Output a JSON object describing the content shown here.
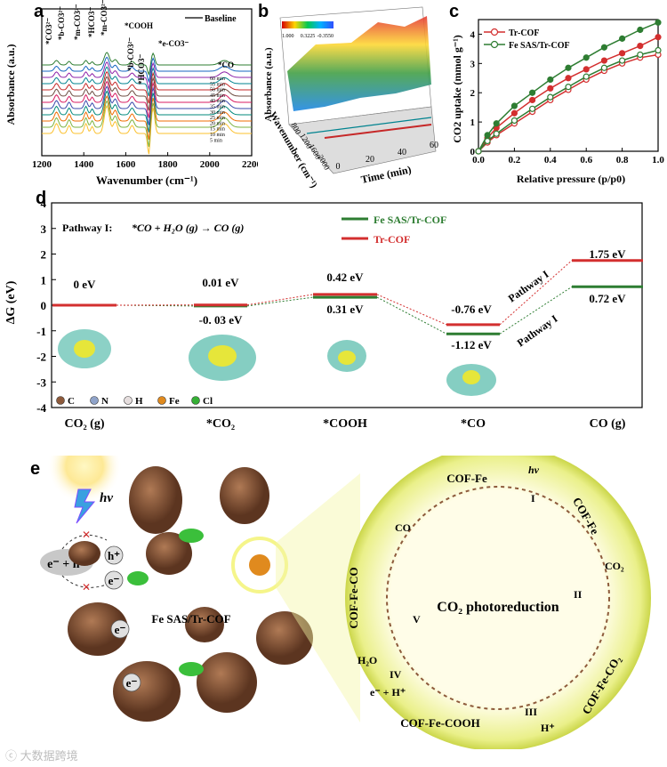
{
  "panels": {
    "a": "a",
    "b": "b",
    "c": "c",
    "d": "d",
    "e": "e"
  },
  "panel_a": {
    "ylabel": "Absorbance (a.u.)",
    "xlabel": "Wavenumber (cm⁻¹)",
    "xticks": [
      "1200",
      "1400",
      "1600",
      "1800",
      "2000",
      "2200"
    ],
    "legend": "Baseline",
    "peak_labels": [
      "*CO3²⁻",
      "*b-CO3²⁻",
      "*m-CO3²⁻",
      "*HCO3⁻",
      "*m-CO3²⁻",
      "*COOH",
      "*b-CO3²⁻",
      "*HCO3⁻",
      "*e-CO3⁻",
      "*CO"
    ],
    "time_labels": [
      "60 min",
      "55 min",
      "50 min",
      "45 min",
      "40 min",
      "35 min",
      "30 min",
      "25 min",
      "20 min",
      "15 min",
      "10 min",
      "5 min"
    ],
    "colors": [
      "#2e7d32",
      "#1565c0",
      "#8e24aa",
      "#00838f",
      "#c62828",
      "#6d4c41",
      "#d81b60",
      "#3949ab",
      "#00897b",
      "#ef6c00",
      "#7cb342",
      "#fbc02d"
    ]
  },
  "panel_b": {
    "zlabel": "Absorbance (a.u.)",
    "xlabel": "Time (min)",
    "ylabel": "Wavenumber (cm⁻¹)",
    "colorbar": [
      "1.000",
      "0.3225",
      "-0.3550"
    ],
    "time_ticks": [
      "0",
      "20",
      "40",
      "60"
    ],
    "wn_ticks": [
      "800",
      "1200",
      "1600",
      "2000"
    ]
  },
  "chart_data": [
    {
      "type": "line",
      "id": "c",
      "xlabel": "Relative pressure (p/p0)",
      "ylabel": "CO2 uptake (mmol g⁻¹)",
      "xlim": [
        0,
        1.0
      ],
      "ylim": [
        0,
        4.5
      ],
      "xticks": [
        "0.0",
        "0.2",
        "0.4",
        "0.6",
        "0.8",
        "1.0"
      ],
      "yticks": [
        "0",
        "1",
        "2",
        "3",
        "4"
      ],
      "x": [
        0,
        0.05,
        0.1,
        0.2,
        0.3,
        0.4,
        0.5,
        0.6,
        0.7,
        0.8,
        0.9,
        1.0
      ],
      "series": [
        {
          "name": "Tr-COF",
          "color": "#d32f2f",
          "ads": [
            0,
            0.45,
            0.8,
            1.3,
            1.75,
            2.15,
            2.5,
            2.8,
            3.1,
            3.35,
            3.6,
            3.9
          ],
          "des": [
            0,
            0.3,
            0.55,
            0.95,
            1.35,
            1.75,
            2.1,
            2.45,
            2.75,
            3.0,
            3.2,
            3.3
          ]
        },
        {
          "name": "Fe SAS/Tr-COF",
          "color": "#2e7d32",
          "ads": [
            0,
            0.55,
            0.95,
            1.55,
            2.0,
            2.45,
            2.85,
            3.2,
            3.55,
            3.85,
            4.15,
            4.4
          ],
          "des": [
            0,
            0.35,
            0.6,
            1.05,
            1.45,
            1.85,
            2.2,
            2.55,
            2.85,
            3.1,
            3.3,
            3.45
          ]
        }
      ]
    },
    {
      "type": "line",
      "id": "d",
      "ylabel": "ΔG (eV)",
      "ylim": [
        -4,
        4
      ],
      "yticks": [
        "4",
        "3",
        "2",
        "1",
        "0",
        "-1",
        "-2",
        "-3",
        "-4"
      ],
      "categories": [
        "CO₂ (g)",
        "*CO₂",
        "*COOH",
        "*CO",
        "CO (g)"
      ],
      "title_text": "Pathway I:",
      "reaction": "*CO + H₂O (g) → CO (g)",
      "series": [
        {
          "name": "Fe SAS/Tr-COF",
          "color": "#2e7d32",
          "values": [
            0,
            -0.03,
            0.31,
            -1.12,
            0.72
          ]
        },
        {
          "name": "Tr-COF",
          "color": "#d32f2f",
          "values": [
            0,
            0.01,
            0.42,
            -0.76,
            1.75
          ]
        }
      ],
      "value_labels": [
        "0 eV",
        "0.01 eV",
        "-0. 03 eV",
        "0.42 eV",
        "0.31 eV",
        "-0.76 eV",
        "-1.12 eV",
        "1.75 eV",
        "0.72 eV"
      ],
      "pathway_labels": [
        "Pathway I",
        "Pathway I"
      ],
      "atom_legend": [
        {
          "label": "C",
          "color": "#8d5a3b"
        },
        {
          "label": "N",
          "color": "#8fa3c9"
        },
        {
          "label": "H",
          "color": "#e6dede"
        },
        {
          "label": "Fe",
          "color": "#e08a1e"
        },
        {
          "label": "Cl",
          "color": "#35b035"
        }
      ]
    }
  ],
  "panel_e": {
    "hv": "hν",
    "charge": "e⁻ + h⁺",
    "material": "Fe SAS/Tr-COF",
    "center": "CO₂ photoreduction",
    "states": [
      "COF-Fe",
      "COF-Fe",
      "COF-Fe-CO₂",
      "COF-Fe-COOH",
      "COF-Fe-CO"
    ],
    "steps": [
      "I",
      "II",
      "III",
      "IV",
      "V"
    ],
    "species": [
      "hν",
      "CO₂",
      "H⁺",
      "e⁻ + H⁺",
      "H₂O",
      "CO"
    ],
    "carriers": [
      "h⁺",
      "e⁻",
      "e⁻",
      "e⁻"
    ]
  },
  "watermark": "大数据跨境"
}
